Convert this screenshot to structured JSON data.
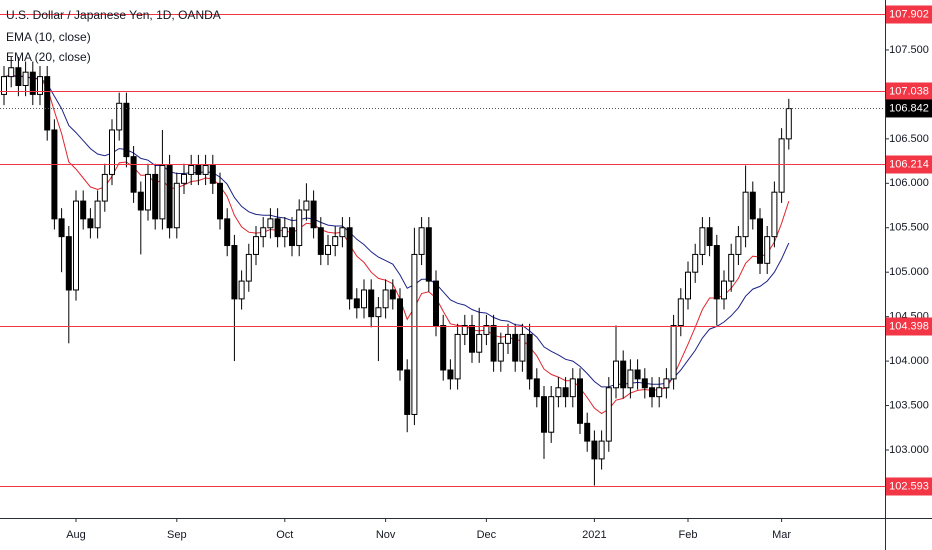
{
  "chart_data": {
    "type": "candlestick",
    "title": "U.S. Dollar / Japanese Yen, 1D, OANDA",
    "categories": [
      null,
      null,
      null,
      null,
      null,
      null,
      null,
      null,
      null,
      null,
      "Aug",
      null,
      null,
      null,
      null,
      null,
      null,
      null,
      null,
      null,
      null,
      null,
      null,
      null,
      "Sep",
      null,
      null,
      null,
      null,
      null,
      null,
      null,
      null,
      null,
      null,
      null,
      null,
      null,
      null,
      "Oct",
      null,
      null,
      null,
      null,
      null,
      null,
      null,
      null,
      null,
      null,
      null,
      null,
      null,
      "Nov",
      null,
      null,
      null,
      null,
      null,
      null,
      null,
      null,
      null,
      null,
      null,
      null,
      null,
      "Dec",
      null,
      null,
      null,
      null,
      null,
      null,
      null,
      null,
      null,
      null,
      null,
      null,
      null,
      null,
      "2021",
      null,
      null,
      null,
      null,
      null,
      null,
      null,
      null,
      null,
      null,
      null,
      null,
      "Feb",
      null,
      null,
      null,
      null,
      null,
      null,
      null,
      null,
      null,
      null,
      null,
      null,
      "Mar",
      null
    ],
    "ohlc": {
      "up_color": "#ffffff",
      "down_color": "#000000",
      "outline": "#000000",
      "open": [
        107.0,
        107.2,
        107.3,
        107.1,
        107.25,
        107.0,
        107.2,
        106.6,
        105.6,
        105.4,
        104.8,
        105.8,
        105.6,
        105.5,
        105.8,
        106.1,
        106.6,
        106.9,
        106.3,
        105.9,
        105.7,
        106.1,
        105.6,
        106.2,
        105.5,
        106.0,
        106.1,
        106.2,
        106.1,
        106.2,
        106.0,
        105.6,
        105.3,
        104.7,
        104.9,
        105.2,
        105.4,
        105.5,
        105.6,
        105.4,
        105.5,
        105.3,
        105.7,
        105.8,
        105.5,
        105.2,
        105.3,
        105.4,
        105.5,
        104.7,
        104.6,
        104.8,
        104.5,
        104.6,
        104.8,
        104.7,
        103.9,
        103.4,
        105.2,
        105.5,
        104.9,
        104.4,
        103.9,
        103.8,
        104.3,
        104.4,
        104.1,
        104.3,
        104.4,
        104.0,
        104.2,
        104.3,
        104.0,
        104.3,
        103.8,
        103.6,
        103.2,
        103.6,
        103.7,
        103.6,
        103.8,
        103.3,
        103.1,
        102.9,
        103.1,
        103.7,
        104.0,
        103.7,
        103.9,
        103.8,
        103.7,
        103.6,
        103.7,
        103.8,
        104.4,
        104.7,
        105.0,
        105.2,
        105.5,
        105.3,
        104.7,
        104.9,
        105.2,
        105.4,
        105.9,
        105.6,
        105.1,
        105.4,
        105.9,
        106.5
      ],
      "high": [
        107.32,
        107.42,
        107.42,
        107.37,
        107.37,
        107.32,
        107.32,
        106.72,
        105.72,
        105.52,
        105.92,
        105.92,
        105.72,
        105.92,
        106.22,
        106.72,
        107.02,
        107.02,
        106.42,
        106.02,
        106.22,
        106.22,
        106.6,
        106.32,
        106.12,
        106.22,
        106.32,
        106.32,
        106.32,
        106.32,
        106.12,
        105.72,
        105.42,
        105.02,
        105.32,
        105.52,
        105.62,
        105.72,
        105.72,
        105.62,
        105.62,
        105.82,
        106.0,
        105.92,
        105.62,
        105.42,
        105.52,
        105.62,
        105.62,
        104.82,
        104.92,
        104.92,
        104.72,
        104.92,
        104.92,
        104.82,
        104.02,
        105.5,
        105.62,
        105.62,
        105.02,
        104.52,
        104.02,
        104.42,
        104.52,
        104.52,
        104.6,
        104.52,
        104.52,
        104.32,
        104.42,
        104.42,
        104.42,
        104.42,
        103.92,
        103.72,
        103.72,
        103.82,
        103.82,
        103.92,
        103.92,
        103.42,
        103.22,
        103.22,
        103.82,
        104.4,
        104.12,
        104.02,
        104.02,
        103.92,
        103.82,
        103.82,
        103.92,
        104.52,
        104.82,
        105.12,
        105.32,
        105.62,
        105.62,
        105.42,
        105.02,
        105.32,
        105.52,
        106.2,
        106.02,
        105.72,
        105.52,
        106.02,
        106.62,
        106.95
      ],
      "low": [
        106.88,
        107.08,
        106.98,
        106.98,
        106.88,
        106.88,
        106.48,
        105.48,
        105.0,
        104.2,
        104.68,
        105.48,
        105.38,
        105.38,
        105.68,
        105.98,
        106.48,
        106.18,
        105.78,
        105.2,
        105.58,
        105.48,
        105.48,
        105.38,
        105.38,
        105.88,
        105.98,
        105.98,
        105.98,
        105.88,
        105.48,
        105.18,
        104.0,
        104.58,
        104.78,
        105.08,
        105.28,
        105.38,
        105.28,
        105.28,
        105.18,
        105.18,
        105.58,
        105.38,
        105.08,
        105.08,
        105.18,
        105.28,
        104.58,
        104.48,
        104.48,
        104.38,
        104.0,
        104.48,
        104.58,
        103.78,
        103.2,
        103.28,
        105.08,
        104.78,
        104.28,
        103.78,
        103.68,
        103.68,
        104.18,
        103.98,
        103.98,
        104.18,
        103.88,
        103.88,
        104.08,
        103.88,
        103.88,
        103.68,
        103.48,
        102.9,
        103.08,
        103.48,
        103.48,
        103.48,
        103.18,
        102.98,
        102.6,
        102.78,
        102.98,
        103.58,
        103.58,
        103.58,
        103.68,
        103.58,
        103.48,
        103.48,
        103.58,
        103.68,
        104.28,
        104.58,
        104.88,
        105.08,
        105.18,
        104.4,
        104.58,
        104.78,
        105.08,
        105.28,
        105.48,
        104.98,
        104.98,
        105.28,
        105.78,
        106.38
      ],
      "close": [
        107.2,
        107.3,
        107.1,
        107.25,
        107.0,
        107.2,
        106.6,
        105.6,
        105.4,
        104.8,
        105.8,
        105.6,
        105.5,
        105.8,
        106.1,
        106.6,
        106.9,
        106.3,
        105.9,
        105.7,
        106.1,
        105.6,
        106.2,
        105.5,
        106.0,
        106.1,
        106.2,
        106.1,
        106.2,
        106.0,
        105.6,
        105.3,
        104.7,
        104.9,
        105.2,
        105.4,
        105.5,
        105.6,
        105.4,
        105.5,
        105.3,
        105.7,
        105.8,
        105.5,
        105.2,
        105.3,
        105.4,
        105.5,
        104.7,
        104.6,
        104.8,
        104.5,
        104.6,
        104.8,
        104.7,
        103.9,
        103.4,
        105.2,
        105.5,
        104.9,
        104.4,
        103.9,
        103.8,
        104.3,
        104.4,
        104.1,
        104.3,
        104.4,
        104.0,
        104.2,
        104.3,
        104.0,
        104.3,
        103.8,
        103.6,
        103.2,
        103.6,
        103.7,
        103.6,
        103.8,
        103.3,
        103.1,
        102.9,
        103.1,
        103.7,
        104.0,
        103.7,
        103.9,
        103.8,
        103.7,
        103.6,
        103.7,
        103.8,
        104.4,
        104.7,
        105.0,
        105.2,
        105.5,
        105.3,
        104.7,
        104.9,
        105.2,
        105.4,
        105.9,
        105.6,
        105.1,
        105.4,
        105.9,
        106.5,
        106.84
      ]
    },
    "series": [
      {
        "name": "EMA (10, close)",
        "color": "#e0262e",
        "values": [
          107.2,
          107.22,
          107.2,
          107.21,
          107.17,
          107.18,
          107.08,
          106.81,
          106.56,
          106.24,
          106.16,
          106.06,
          105.96,
          105.93,
          105.96,
          106.08,
          106.23,
          106.24,
          106.18,
          106.09,
          106.09,
          106.0,
          106.04,
          105.94,
          105.95,
          105.98,
          106.02,
          106.03,
          106.06,
          106.05,
          105.97,
          105.85,
          105.64,
          105.51,
          105.45,
          105.44,
          105.45,
          105.48,
          105.47,
          105.47,
          105.44,
          105.49,
          105.55,
          105.54,
          105.48,
          105.45,
          105.44,
          105.45,
          105.31,
          105.18,
          105.11,
          105.0,
          104.93,
          104.91,
          104.87,
          104.7,
          104.47,
          104.6,
          104.76,
          104.78,
          104.71,
          104.56,
          104.42,
          104.4,
          104.4,
          104.35,
          104.34,
          104.35,
          104.29,
          104.27,
          104.28,
          104.23,
          104.24,
          104.16,
          104.06,
          103.91,
          103.85,
          103.82,
          103.78,
          103.78,
          103.7,
          103.59,
          103.47,
          103.41,
          103.46,
          103.56,
          103.58,
          103.64,
          103.67,
          103.68,
          103.67,
          103.68,
          103.7,
          103.83,
          104.01,
          104.19,
          104.38,
          104.58,
          104.71,
          104.71,
          104.74,
          104.82,
          104.93,
          105.1,
          105.18,
          105.17,
          105.21,
          105.34,
          105.55,
          105.8
        ]
      },
      {
        "name": "EMA (20, close)",
        "color": "#1c2385",
        "values": [
          107.2,
          107.21,
          107.2,
          107.2,
          107.18,
          107.18,
          107.12,
          106.98,
          106.84,
          106.65,
          106.57,
          106.48,
          106.39,
          106.33,
          106.31,
          106.34,
          106.39,
          106.38,
          106.34,
          106.28,
          106.26,
          106.2,
          106.2,
          106.13,
          106.11,
          106.11,
          106.12,
          106.12,
          106.13,
          106.12,
          106.07,
          105.99,
          105.84,
          105.74,
          105.68,
          105.65,
          105.64,
          105.64,
          105.62,
          105.61,
          105.58,
          105.59,
          105.61,
          105.6,
          105.56,
          105.53,
          105.52,
          105.52,
          105.45,
          105.37,
          105.31,
          105.23,
          105.17,
          105.13,
          105.09,
          104.97,
          104.82,
          104.86,
          104.92,
          104.92,
          104.87,
          104.78,
          104.69,
          104.65,
          104.63,
          104.58,
          104.55,
          104.54,
          104.49,
          104.46,
          104.45,
          104.41,
          104.4,
          104.34,
          104.27,
          104.16,
          104.11,
          104.07,
          104.02,
          104.0,
          103.94,
          103.86,
          103.77,
          103.71,
          103.71,
          103.74,
          103.74,
          103.75,
          103.76,
          103.75,
          103.74,
          103.74,
          103.75,
          103.81,
          103.9,
          104.01,
          104.12,
          104.26,
          104.36,
          104.39,
          104.44,
          104.51,
          104.6,
          104.73,
          104.81,
          104.84,
          104.9,
          105.0,
          105.15,
          105.33
        ]
      }
    ],
    "levels": [
      107.902,
      107.038,
      106.214,
      104.398,
      102.593
    ],
    "level_color": "#f23645",
    "last_price": 106.842,
    "ylim": [
      102.235,
      108.062
    ],
    "yticks": [
      {
        "value": 103.0,
        "label": "103.000"
      },
      {
        "value": 103.5,
        "label": "103.500"
      },
      {
        "value": 104.0,
        "label": "104.000"
      },
      {
        "value": 104.5,
        "label": "104.500"
      },
      {
        "value": 105.0,
        "label": "105.000"
      },
      {
        "value": 105.5,
        "label": "105.500"
      },
      {
        "value": 106.0,
        "label": "106.000"
      },
      {
        "value": 106.5,
        "label": "106.500"
      },
      {
        "value": 107.0,
        "label": "107.000"
      },
      {
        "value": 107.5,
        "label": "107.500"
      }
    ],
    "grid": false
  }
}
